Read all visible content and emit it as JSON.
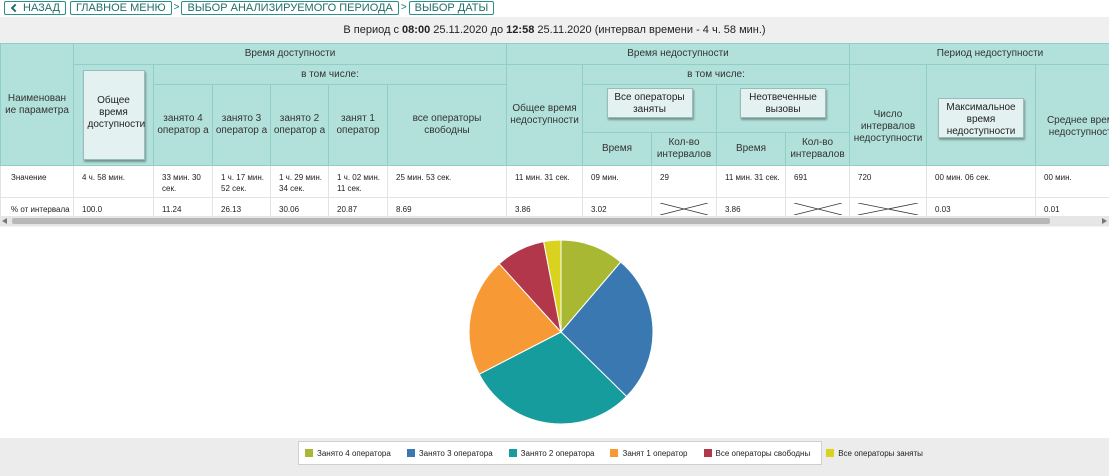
{
  "nav": {
    "back_label": "НАЗАД",
    "main_menu_label": "ГЛАВНОЕ МЕНЮ",
    "period_label": "ВЫБОР АНАЛИЗИРУЕМОГО ПЕРИОДА",
    "date_label": "ВЫБОР ДАТЫ",
    "separator": ">"
  },
  "period": {
    "prefix": "В период с",
    "start_time": "08:00",
    "start_date": "25.11.2020",
    "to": "до",
    "end_time": "12:58",
    "end_date": "25.11.2020",
    "interval": "(интервал времени - 4 ч. 58 мин.)"
  },
  "table": {
    "headers": {
      "param_name": "Наименован ие параметра",
      "availability_group": "Время доступности",
      "availability_total_button": "Общее время доступности",
      "availability_including": "в том числе:",
      "busy4": "занято 4 оператор а",
      "busy3": "занято 3 оператор а",
      "busy2": "занято 2 оператор а",
      "busy1": "занят 1 оператор",
      "all_free": "все операторы свободны",
      "unavailability_group": "Время недоступности",
      "unavailability_total": "Общее время недоступности",
      "unavailability_including": "в том числе:",
      "all_busy_button": "Все операторы заняты",
      "unanswered_button": "Неотвеченные вызовы",
      "time1": "Время",
      "count1": "Кол-во интервалов",
      "time2": "Время",
      "count2": "Кол-во интервалов",
      "period_group": "Период недоступности",
      "interval_count": "Число интервалов недоступности",
      "max_time_button": "Максимальное время недоступности",
      "avg_time": "Среднее время недоступности"
    },
    "rows": [
      {
        "name": "Значение",
        "total_available": "4 ч. 58 мин.",
        "busy4": "33 мин. 30 сек.",
        "busy3": "1 ч. 17 мин. 52 сек.",
        "busy2": "1 ч. 29 мин. 34 сек.",
        "busy1": "1 ч. 02 мин. 11 сек.",
        "all_free": "25 мин. 53 сек.",
        "total_unavailable": "11 мин. 31 сек.",
        "all_busy_time": "09 мин.",
        "all_busy_count": "29",
        "unanswered_time": "11 мин. 31 сек.",
        "unanswered_count": "691",
        "interval_count": "720",
        "max_time": "00 мин. 06 сек.",
        "avg_time": "00 мин."
      },
      {
        "name": "% от интервала",
        "total_available": "100.0",
        "busy4": "11.24",
        "busy3": "26.13",
        "busy2": "30.06",
        "busy1": "20.87",
        "all_free": "8.69",
        "total_unavailable": "3.86",
        "all_busy_time": "3.02",
        "unanswered_time": "3.86",
        "max_time": "0.03",
        "avg_time": "0.01"
      }
    ]
  },
  "chart_data": {
    "type": "pie",
    "categories": [
      "Занято 4 оператора",
      "Занято 3 оператора",
      "Занято 2 оператора",
      "Занят 1 оператор",
      "Все операторы свободны",
      "Все операторы заняты"
    ],
    "values": [
      11.24,
      26.13,
      30.06,
      20.87,
      8.69,
      3.02
    ],
    "colors": [
      "#a9b832",
      "#3a78b2",
      "#169c9c",
      "#f79a35",
      "#b3374a",
      "#d9d21f"
    ],
    "legend_position": "bottom"
  }
}
